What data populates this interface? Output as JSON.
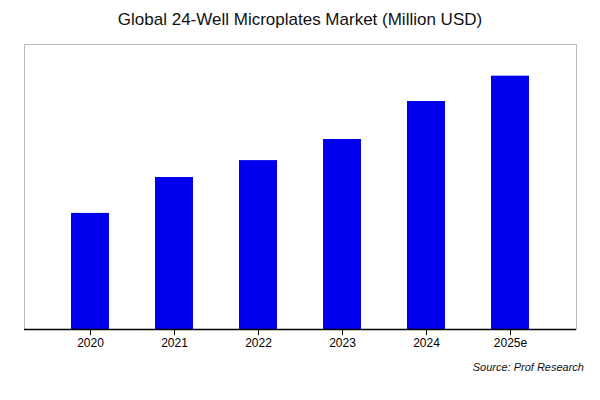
{
  "chart_data": {
    "type": "bar",
    "title": "Global 24-Well Microplates Market (Million USD)",
    "categories": [
      "2020",
      "2021",
      "2022",
      "2023",
      "2024",
      "2025e"
    ],
    "values": [
      55,
      72,
      80,
      90,
      108,
      120
    ],
    "color": "#0000EE",
    "ylim": [
      0,
      135
    ],
    "grid": false,
    "tick_labels": "x",
    "annotation": "Source: Prof Research"
  }
}
